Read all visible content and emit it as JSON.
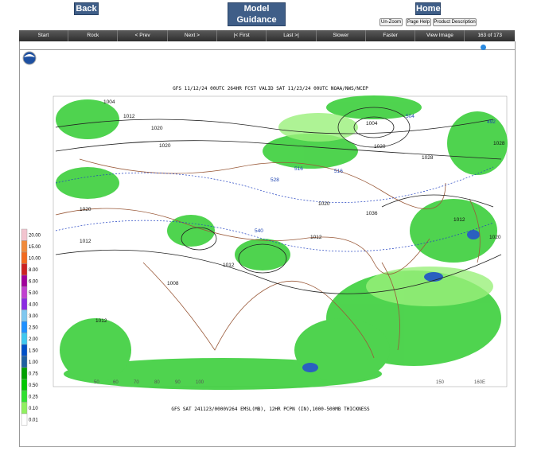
{
  "header": {
    "back": "Back",
    "model_guidance": "Model Guidance",
    "home": "Home",
    "un_zoom": "Un-Zoom",
    "page_help": "Page Help",
    "product_description": "Product Description"
  },
  "toolbar": {
    "buttons": [
      "Start",
      "Rock",
      "< Prev",
      "Next >",
      "|< First",
      "Last >|",
      "Slower",
      "Faster",
      "View Image"
    ],
    "frame_counter": "163 of 173"
  },
  "map": {
    "title": "GFS 11/12/24 00UTC 264HR FCST VALID SAT 11/23/24 00UTC NOAA/NWS/NCEP",
    "caption": "GFS SAT 241123/0000V264 EMSL(MB), 12HR PCPN (IN),1000-500MB THICKNESS",
    "contour_labels": [
      "1004",
      "1012",
      "1020",
      "1020",
      "1028",
      "1036",
      "1020",
      "1012",
      "1028",
      "1020",
      "1012",
      "1004",
      "1020",
      "1012",
      "1008",
      "1012",
      "516",
      "528",
      "540",
      "504",
      "492",
      "516",
      "1020",
      "1012"
    ],
    "longitude_labels": [
      "50",
      "60",
      "70",
      "80",
      "90",
      "100",
      "150",
      "160E"
    ]
  },
  "legend": {
    "items": [
      {
        "label": "20.00",
        "color": "#f2c4cf"
      },
      {
        "label": "15.00",
        "color": "#f08a3c"
      },
      {
        "label": "10.00",
        "color": "#f26a1e"
      },
      {
        "label": "8.00",
        "color": "#cc2222"
      },
      {
        "label": "6.00",
        "color": "#a0009a"
      },
      {
        "label": "5.00",
        "color": "#c040d0"
      },
      {
        "label": "4.00",
        "color": "#8a2be2"
      },
      {
        "label": "3.00",
        "color": "#7fc7f0"
      },
      {
        "label": "2.50",
        "color": "#1e90ff"
      },
      {
        "label": "2.00",
        "color": "#40c8f0"
      },
      {
        "label": "1.50",
        "color": "#0050c8"
      },
      {
        "label": "1.00",
        "color": "#2060a0"
      },
      {
        "label": "0.75",
        "color": "#00a000"
      },
      {
        "label": "0.50",
        "color": "#00c800"
      },
      {
        "label": "0.25",
        "color": "#30e030"
      },
      {
        "label": "0.10",
        "color": "#90f060"
      },
      {
        "label": "0.01",
        "color": "#ffffff"
      }
    ]
  }
}
